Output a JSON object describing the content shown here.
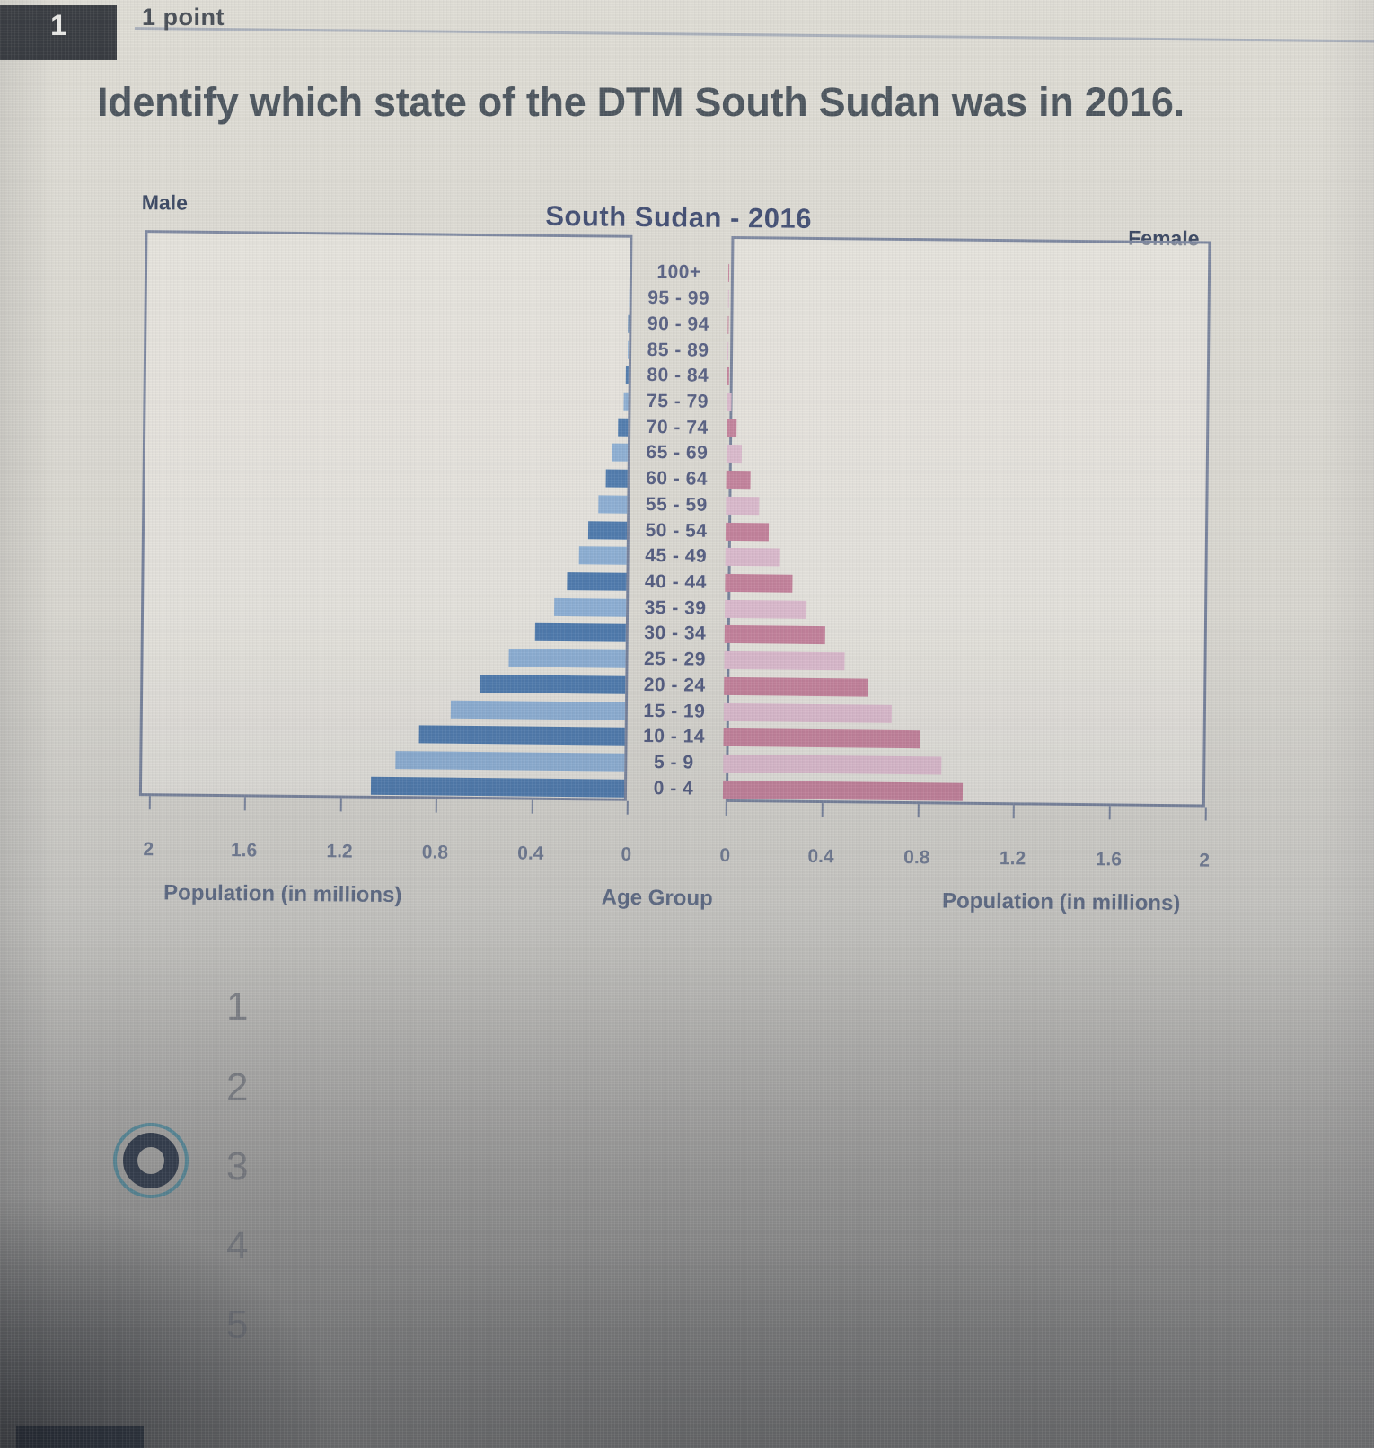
{
  "header": {
    "question_number": "1",
    "points_label": "1 point"
  },
  "question": {
    "text": "Identify which state of the DTM South Sudan was in 2016."
  },
  "chart": {
    "title": "South Sudan - 2016",
    "left_series_label": "Male",
    "right_series_label": "Female",
    "x_axis_caption_left": "Population (in millions)",
    "x_axis_caption_center": "Age Group",
    "x_axis_caption_right": "Population (in millions)",
    "male_axis_ticks": [
      "2",
      "1.6",
      "1.2",
      "0.8",
      "0.4",
      "0"
    ],
    "female_axis_ticks": [
      "0",
      "0.4",
      "0.8",
      "1.2",
      "1.6",
      "2"
    ],
    "colors": {
      "male_dark": "#4d79ac",
      "male_light": "#8badd2",
      "female_dark": "#c2809a",
      "female_light": "#d9b8cb",
      "axis": "#76819b"
    }
  },
  "chart_data": {
    "type": "bar",
    "subtype": "population-pyramid",
    "title": "South Sudan - 2016",
    "xlabel": "Population (in millions)",
    "ylabel": "Age Group",
    "x_range_millions": [
      0,
      2
    ],
    "unit": "millions of people",
    "age_groups": [
      "0 - 4",
      "5 - 9",
      "10 - 14",
      "15 - 19",
      "20 - 24",
      "25 - 29",
      "30 - 34",
      "35 - 39",
      "40 - 44",
      "45 - 49",
      "50 - 54",
      "55 - 59",
      "60 - 64",
      "65 - 69",
      "70 - 74",
      "75 - 79",
      "80 - 84",
      "85 - 89",
      "90 - 94",
      "95 - 99",
      "100+"
    ],
    "series": [
      {
        "name": "Male",
        "values": [
          1.06,
          0.96,
          0.86,
          0.73,
          0.61,
          0.49,
          0.38,
          0.3,
          0.25,
          0.2,
          0.16,
          0.12,
          0.09,
          0.065,
          0.04,
          0.02,
          0.01,
          0.004,
          0.002,
          0.001,
          0.0005
        ]
      },
      {
        "name": "Female",
        "values": [
          1.0,
          0.91,
          0.82,
          0.7,
          0.6,
          0.5,
          0.42,
          0.34,
          0.28,
          0.23,
          0.18,
          0.14,
          0.1,
          0.065,
          0.04,
          0.02,
          0.009,
          0.004,
          0.002,
          0.001,
          0.0005
        ]
      }
    ]
  },
  "options": {
    "items": [
      {
        "label": "1",
        "selected": false
      },
      {
        "label": "2",
        "selected": false
      },
      {
        "label": "3",
        "selected": true
      },
      {
        "label": "4",
        "selected": false
      },
      {
        "label": "5",
        "selected": false
      }
    ]
  }
}
